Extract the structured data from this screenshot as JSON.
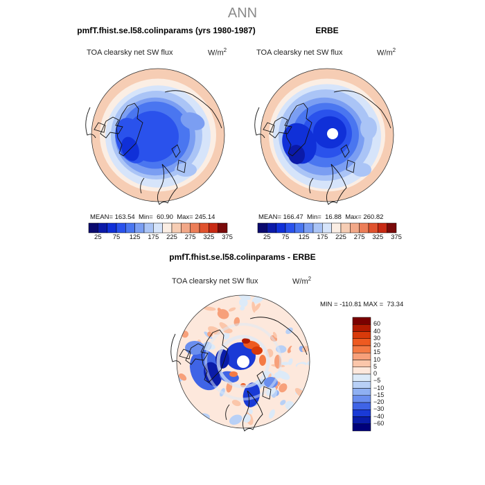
{
  "page": {
    "title": "ANN"
  },
  "panels": [
    {
      "id": "model",
      "case_title": "pmfT.fhist.se.l58.colinparams (yrs 1980-1987)",
      "variable": "TOA clearsky net SW flux",
      "units_base": "W/m",
      "units_exp": "2",
      "mean_label": "MEAN=",
      "mean": "163.54",
      "min_label": "Min=",
      "min": "60.90",
      "max_label": "Max=",
      "max": "245.14"
    },
    {
      "id": "obs",
      "case_title": "ERBE",
      "variable": "TOA clearsky net SW flux",
      "units_base": "W/m",
      "units_exp": "2",
      "mean_label": "MEAN=",
      "mean": "166.47",
      "min_label": "Min=",
      "min": "16.88",
      "max_label": "Max=",
      "max": "260.82"
    }
  ],
  "diff": {
    "case_title": "pmfT.fhist.se.l58.colinparams - ERBE",
    "variable": "TOA clearsky net SW flux",
    "units_base": "W/m",
    "units_exp": "2",
    "min_label": "MIN =",
    "min": "-110.81",
    "max_label": "MAX =",
    "max": "73.34"
  },
  "chart_data": [
    {
      "type": "heatmap",
      "projection": "north polar stereographic",
      "title": "pmfT.fhist.se.l58.colinparams (yrs 1980-1987)",
      "variable": "TOA clearsky net SW flux",
      "units": "W/m^2",
      "stats": {
        "mean": 163.54,
        "min": 60.9,
        "max": 245.14
      },
      "colorbar": {
        "orientation": "horizontal",
        "tick_labels": [
          "25",
          "75",
          "125",
          "175",
          "225",
          "275",
          "325",
          "375"
        ],
        "colors": [
          "#0a0a6e",
          "#0b1aa8",
          "#1030d8",
          "#2a52ec",
          "#4a76f0",
          "#7b9ef2",
          "#aac4f6",
          "#d6e4fa",
          "#fbeee4",
          "#f6cdb4",
          "#f2a888",
          "#ec7e58",
          "#e0522e",
          "#c82a14",
          "#7a0a0a"
        ]
      },
      "description_rings": "polar cap values ~60-100, increasing outward to ~245 near 40N"
    },
    {
      "type": "heatmap",
      "projection": "north polar stereographic",
      "title": "ERBE",
      "variable": "TOA clearsky net SW flux",
      "units": "W/m^2",
      "stats": {
        "mean": 166.47,
        "min": 16.88,
        "max": 260.82
      },
      "colorbar": {
        "orientation": "horizontal",
        "tick_labels": [
          "25",
          "75",
          "125",
          "175",
          "225",
          "275",
          "325",
          "375"
        ]
      }
    },
    {
      "type": "heatmap",
      "projection": "north polar stereographic",
      "title": "pmfT.fhist.se.l58.colinparams - ERBE",
      "variable": "TOA clearsky net SW flux",
      "units": "W/m^2",
      "stats": {
        "min": -110.81,
        "max": 73.34
      },
      "colorbar": {
        "orientation": "vertical",
        "levels": [
          "60",
          "40",
          "30",
          "20",
          "15",
          "10",
          "5",
          "0",
          "-5",
          "-10",
          "-15",
          "-20",
          "-30",
          "-40",
          "-60"
        ],
        "colors": [
          "#7a0000",
          "#b21a00",
          "#d83a0a",
          "#ee5a20",
          "#f47a44",
          "#f7a07a",
          "#fbc6aa",
          "#fde8dc",
          "#dceaf8",
          "#b8d0f6",
          "#8fb0f2",
          "#6a8eee",
          "#3f64e6",
          "#1a3ad6",
          "#0a1ca8",
          "#00007a"
        ]
      }
    }
  ]
}
